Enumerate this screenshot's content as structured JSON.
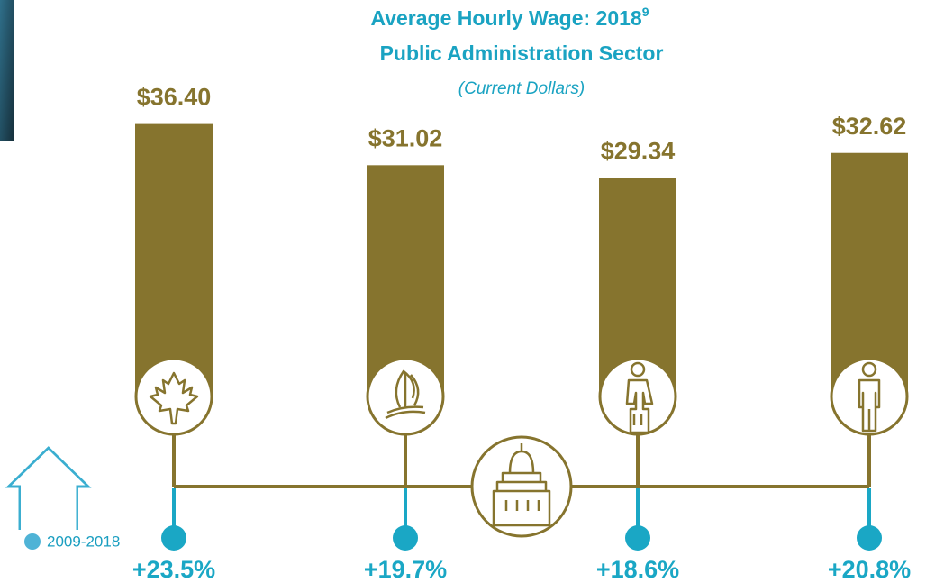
{
  "chart_data": {
    "type": "bar",
    "title": "Average Hourly Wage: 2018",
    "title_note": "9",
    "subtitle": "Public Administration Sector",
    "note": "(Current Dollars)",
    "categories": [
      null,
      null,
      null,
      null
    ],
    "values": [
      36.4,
      31.02,
      29.34,
      32.62
    ],
    "value_labels": [
      "$36.40",
      "$31.02",
      "$29.34",
      "$32.62"
    ],
    "color": "#86742e",
    "change": {
      "name": "2009-2018",
      "color": "#1aa7c5",
      "values": [
        23.5,
        19.7,
        18.6,
        20.8
      ],
      "value_labels": [
        "+23.5%",
        "+19.7%",
        "+18.6%",
        "+20.8%"
      ]
    }
  }
}
